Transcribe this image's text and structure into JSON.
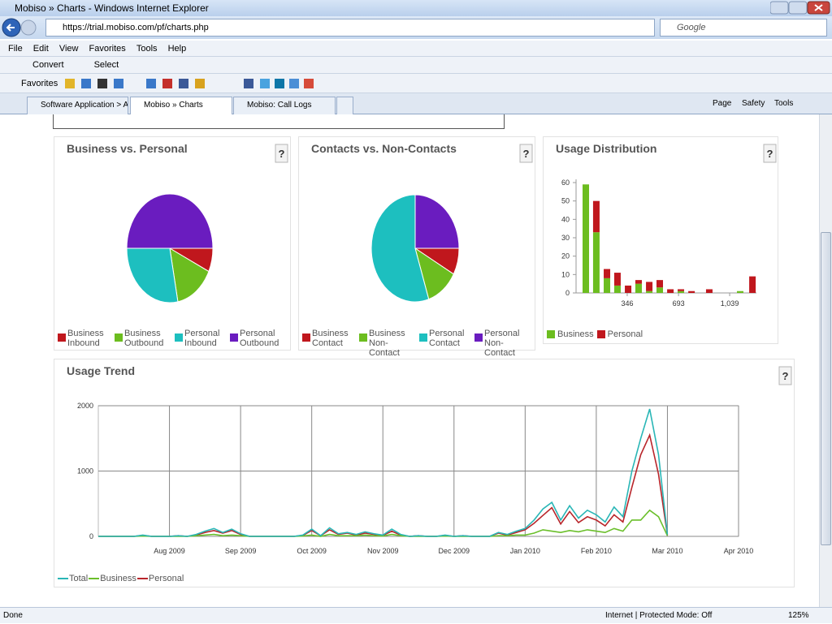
{
  "browser": {
    "window_title": "Mobiso » Charts - Windows Internet Explorer",
    "url": "https://trial.mobiso.com/pf/charts.php",
    "search_placeholder": "Google",
    "menu": [
      "File",
      "Edit",
      "View",
      "Favorites",
      "Tools",
      "Help"
    ],
    "toolbar": [
      "Convert",
      "Select"
    ],
    "favorites": "Favorites",
    "tabs": [
      "Software Application > Ad...",
      "Mobiso » Charts",
      "Mobiso: Call Logs"
    ],
    "commands": [
      "Page",
      "Safety",
      "Tools"
    ],
    "status": "Done",
    "zone": "Internet | Protected Mode: Off",
    "zoom": "125%"
  },
  "chart_data": [
    {
      "type": "pie",
      "title": "Business vs. Personal",
      "help": "?",
      "categories": [
        "Business Inbound",
        "Business Outbound",
        "Personal Inbound",
        "Personal Outbound"
      ],
      "values": [
        7,
        15,
        28,
        50
      ],
      "colors": [
        "#c0171d",
        "#6cbd1f",
        "#1dbfbf",
        "#6a1cbf"
      ]
    },
    {
      "type": "pie",
      "title": "Contacts vs. Non-Contacts",
      "help": "?",
      "categories": [
        "Business Contact",
        "Business Non-Contact",
        "Personal Contact",
        "Personal Non-Contact"
      ],
      "values": [
        8,
        12,
        55,
        25
      ],
      "colors": [
        "#c0171d",
        "#6cbd1f",
        "#1dbfbf",
        "#6a1cbf"
      ]
    },
    {
      "type": "stacked-bar",
      "title": "Usage Distribution",
      "help": "?",
      "x": [
        66,
        137,
        209,
        280,
        352,
        423,
        495,
        566,
        638,
        709,
        781,
        901,
        1110,
        1193
      ],
      "series": [
        {
          "name": "Business",
          "color": "#6cbd1f",
          "values": [
            59,
            33,
            8,
            4,
            0,
            5,
            1,
            3,
            0,
            1,
            0,
            0,
            1,
            0
          ]
        },
        {
          "name": "Personal",
          "color": "#c0171d",
          "values": [
            0,
            17,
            5,
            7,
            4,
            2,
            5,
            4,
            2,
            1,
            1,
            2,
            0,
            9
          ]
        }
      ],
      "xlim": [
        0,
        1220
      ],
      "xticks": [
        346,
        693,
        {
          "value": 1039,
          "label": "1,039"
        }
      ],
      "ylim": [
        0,
        60
      ],
      "yticks": [
        0,
        10,
        20,
        30,
        40,
        50,
        60
      ],
      "grid": false
    },
    {
      "type": "line",
      "title": "Usage Trend",
      "help": "?",
      "categories": [
        null,
        null,
        null,
        null,
        null,
        null,
        null,
        null,
        "Aug 2009",
        null,
        null,
        null,
        null,
        null,
        null,
        null,
        "Sep 2009",
        null,
        null,
        null,
        null,
        null,
        null,
        null,
        "Oct 2009",
        null,
        null,
        null,
        null,
        null,
        null,
        null,
        "Nov 2009",
        null,
        null,
        null,
        null,
        null,
        null,
        null,
        "Dec 2009",
        null,
        null,
        null,
        null,
        null,
        null,
        null,
        "Jan 2010",
        null,
        null,
        null,
        null,
        null,
        null,
        null,
        "Feb 2010",
        null,
        null,
        null,
        null,
        null,
        null,
        null,
        "Mar 2010",
        null,
        null,
        null,
        null,
        null,
        null,
        null,
        "Apr 2010"
      ],
      "series": [
        {
          "name": "Total",
          "color": "#29b6b6",
          "values": [
            0,
            0,
            0,
            0,
            0,
            20,
            0,
            0,
            0,
            10,
            0,
            30,
            80,
            120,
            60,
            110,
            40,
            0,
            0,
            0,
            0,
            0,
            0,
            20,
            110,
            10,
            130,
            40,
            60,
            30,
            70,
            40,
            20,
            110,
            30,
            0,
            10,
            0,
            0,
            20,
            0,
            10,
            0,
            0,
            0,
            60,
            30,
            80,
            120,
            250,
            420,
            520,
            250,
            470,
            280,
            400,
            330,
            220,
            450,
            300,
            1000,
            1500,
            1950,
            1250,
            30,
            null,
            null,
            null,
            null,
            null,
            null,
            null,
            null
          ]
        },
        {
          "name": "Business",
          "color": "#6abf2a",
          "values": [
            0,
            0,
            0,
            0,
            0,
            5,
            0,
            0,
            0,
            0,
            0,
            10,
            20,
            30,
            10,
            20,
            10,
            0,
            0,
            0,
            0,
            0,
            0,
            5,
            20,
            0,
            30,
            10,
            10,
            10,
            20,
            10,
            5,
            30,
            10,
            0,
            0,
            0,
            0,
            5,
            0,
            0,
            0,
            0,
            0,
            10,
            10,
            20,
            20,
            50,
            100,
            80,
            60,
            90,
            70,
            100,
            80,
            60,
            120,
            80,
            250,
            250,
            400,
            300,
            10,
            null,
            null,
            null,
            null,
            null,
            null,
            null,
            null
          ]
        },
        {
          "name": "Personal",
          "color": "#b8252a",
          "values": [
            0,
            0,
            0,
            0,
            0,
            15,
            0,
            0,
            0,
            10,
            0,
            20,
            60,
            90,
            50,
            90,
            30,
            0,
            0,
            0,
            0,
            0,
            0,
            15,
            90,
            10,
            100,
            30,
            50,
            20,
            50,
            30,
            15,
            80,
            20,
            0,
            10,
            0,
            0,
            15,
            0,
            10,
            0,
            0,
            0,
            50,
            20,
            60,
            100,
            200,
            320,
            440,
            190,
            380,
            210,
            300,
            250,
            160,
            330,
            220,
            750,
            1250,
            1550,
            950,
            20,
            null,
            null,
            null,
            null,
            null,
            null,
            null,
            null
          ]
        }
      ],
      "ylim": [
        0,
        2000
      ],
      "yticks": [
        0,
        1000,
        2000
      ],
      "grid": true
    }
  ]
}
